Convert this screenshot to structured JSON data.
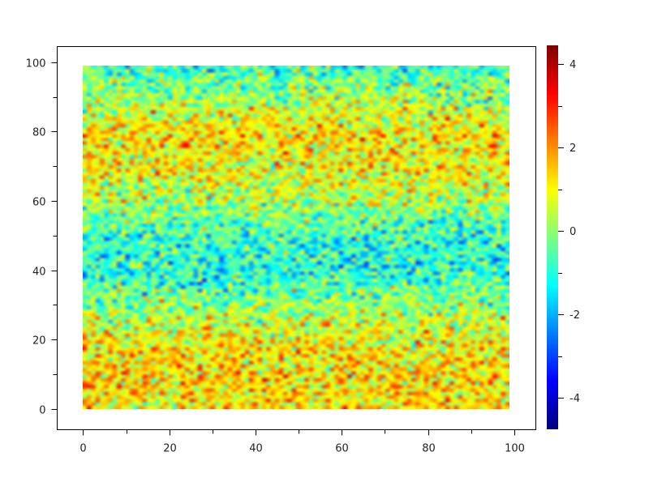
{
  "chart_data": {
    "type": "heatmap",
    "title": "",
    "xlabel": "",
    "ylabel": "",
    "xlim": [
      -6,
      105
    ],
    "ylim": [
      -6,
      104.5
    ],
    "x_range": [
      0,
      99
    ],
    "y_range": [
      0,
      99
    ],
    "grid": false,
    "x_ticks": [
      0,
      20,
      40,
      60,
      80,
      100
    ],
    "y_ticks": [
      0,
      20,
      40,
      60,
      80,
      100
    ],
    "colorbar": {
      "range": [
        -4.75,
        4.45
      ],
      "ticks": [
        4,
        2,
        0,
        -2,
        -4
      ],
      "colormap": "jet",
      "colors": [
        "#00008f",
        "#0000ff",
        "#00ffff",
        "#00ff00",
        "#ffff00",
        "#ff8000",
        "#ff0000"
      ]
    },
    "z_row_profile": {
      "y": [
        0,
        10,
        20,
        30,
        40,
        50,
        60,
        70,
        80,
        90,
        99
      ],
      "mean_z": [
        1.2,
        1.3,
        1.0,
        0.0,
        -1.0,
        -0.8,
        0.3,
        1.0,
        1.2,
        0.2,
        -0.8
      ]
    },
    "z_noise_std": 0.9
  }
}
